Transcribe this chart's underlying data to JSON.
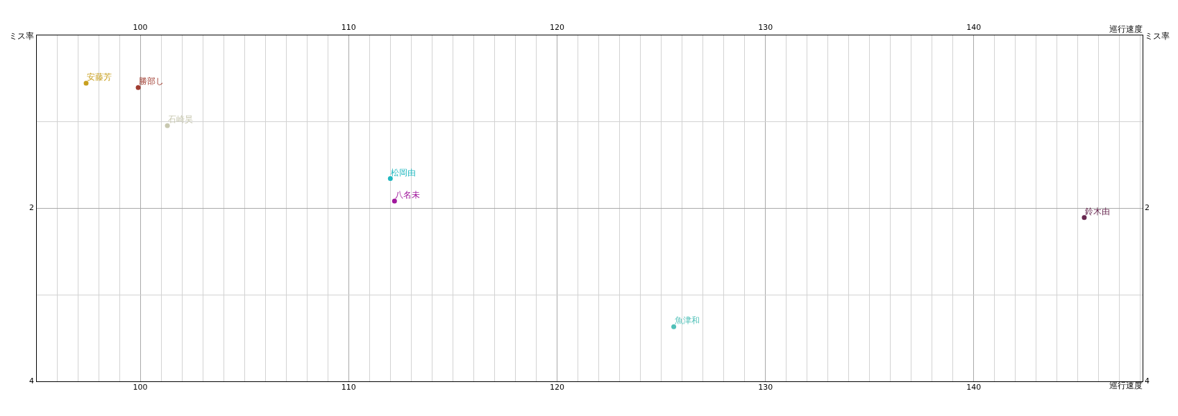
{
  "chart_data": {
    "type": "scatter",
    "xlabel": "巡行速度",
    "x2label": "巡行速度",
    "ylabel": "ミス率",
    "y2label": "ミス率",
    "xlim": [
      95,
      148.1
    ],
    "x2lim": [
      95,
      148.1
    ],
    "ylim": [
      4,
      0
    ],
    "y2lim": [
      4,
      0
    ],
    "xticks": [
      {
        "value": 96,
        "label": null
      },
      {
        "value": 97,
        "label": null
      },
      {
        "value": 98,
        "label": null
      },
      {
        "value": 99,
        "label": null
      },
      100,
      {
        "value": 101,
        "label": null
      },
      {
        "value": 102,
        "label": null
      },
      {
        "value": 103,
        "label": null
      },
      {
        "value": 104,
        "label": null
      },
      {
        "value": 105,
        "label": null
      },
      {
        "value": 106,
        "label": null
      },
      {
        "value": 107,
        "label": null
      },
      {
        "value": 108,
        "label": null
      },
      {
        "value": 109,
        "label": null
      },
      110,
      {
        "value": 111,
        "label": null
      },
      {
        "value": 112,
        "label": null
      },
      {
        "value": 113,
        "label": null
      },
      {
        "value": 114,
        "label": null
      },
      {
        "value": 115,
        "label": null
      },
      {
        "value": 116,
        "label": null
      },
      {
        "value": 117,
        "label": null
      },
      {
        "value": 118,
        "label": null
      },
      {
        "value": 119,
        "label": null
      },
      120,
      {
        "value": 121,
        "label": null
      },
      {
        "value": 122,
        "label": null
      },
      {
        "value": 123,
        "label": null
      },
      {
        "value": 124,
        "label": null
      },
      {
        "value": 125,
        "label": null
      },
      {
        "value": 126,
        "label": null
      },
      {
        "value": 127,
        "label": null
      },
      {
        "value": 128,
        "label": null
      },
      {
        "value": 129,
        "label": null
      },
      130,
      {
        "value": 131,
        "label": null
      },
      {
        "value": 132,
        "label": null
      },
      {
        "value": 133,
        "label": null
      },
      {
        "value": 134,
        "label": null
      },
      {
        "value": 135,
        "label": null
      },
      {
        "value": 136,
        "label": null
      },
      {
        "value": 137,
        "label": null
      },
      {
        "value": 138,
        "label": null
      },
      {
        "value": 139,
        "label": null
      },
      140,
      {
        "value": 141,
        "label": null
      },
      {
        "value": 142,
        "label": null
      },
      {
        "value": 143,
        "label": null
      },
      {
        "value": 144,
        "label": null
      },
      {
        "value": 145,
        "label": null
      },
      {
        "value": 146,
        "label": null
      },
      {
        "value": 147,
        "label": null
      },
      {
        "value": 148,
        "label": null
      }
    ],
    "x2ticks": [
      100,
      110,
      120,
      130,
      140
    ],
    "yticks": [
      {
        "value": 0,
        "label": null
      },
      {
        "value": 1,
        "label": null
      },
      2,
      {
        "value": 3,
        "label": null
      },
      4
    ],
    "y2ticks": [
      2,
      4
    ],
    "grid": true,
    "legend": false,
    "marker": "circle",
    "series": [
      {
        "name": "安藤芳",
        "color": "#c8a020",
        "x": [
          97.4
        ],
        "values": [
          0.56
        ]
      },
      {
        "name": "勝部し",
        "color": "#a03c30",
        "x": [
          99.9
        ],
        "values": [
          0.61
        ]
      },
      {
        "name": "石崎昊",
        "color": "#c8c8b0",
        "x": [
          101.3
        ],
        "values": [
          1.05
        ]
      },
      {
        "name": "松岡由",
        "color": "#20b8c0",
        "x": [
          112.0
        ],
        "values": [
          1.66
        ]
      },
      {
        "name": "八名未",
        "color": "#a0189c",
        "x": [
          112.2
        ],
        "values": [
          1.92
        ]
      },
      {
        "name": "魚津和",
        "color": "#50c0b8",
        "x": [
          125.6
        ],
        "values": [
          3.37
        ]
      },
      {
        "name": "鈴木由",
        "color": "#682850",
        "x": [
          145.3
        ],
        "values": [
          2.11
        ]
      }
    ]
  }
}
